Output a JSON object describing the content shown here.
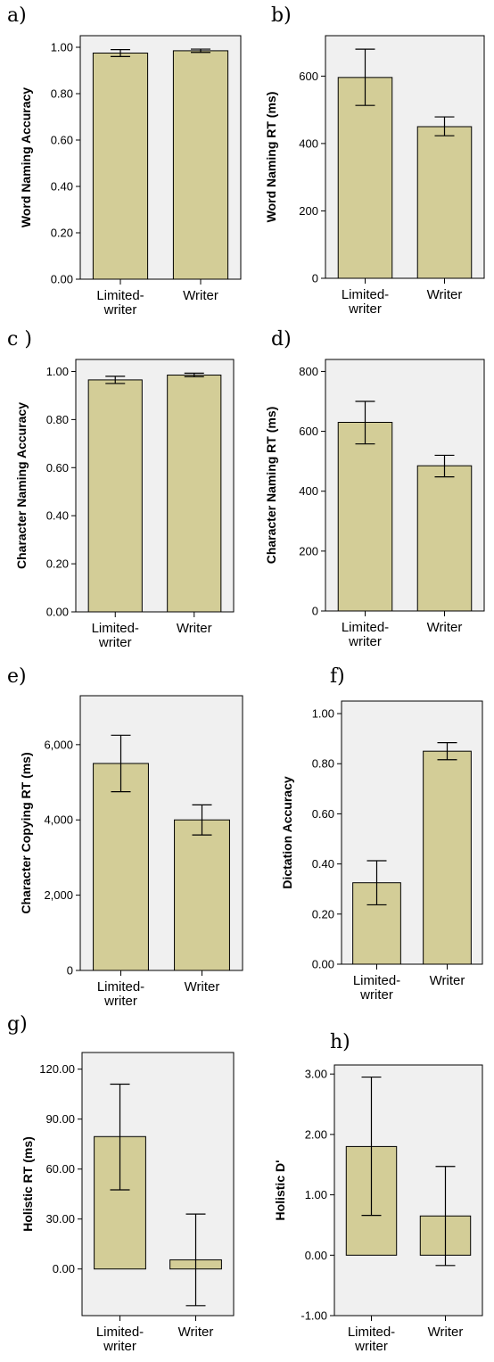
{
  "chart_data": [
    {
      "panel": "a)",
      "type": "bar",
      "categories": [
        [
          "Limited-",
          "writer"
        ],
        [
          "Writer"
        ]
      ],
      "values": [
        0.975,
        0.985
      ],
      "error_bars": [
        [
          0.96,
          0.99
        ],
        [
          0.978,
          0.992
        ]
      ],
      "ylabel": "Word Naming Accuracy",
      "ylim": [
        0,
        1.05
      ],
      "yticks": [
        0,
        0.2,
        0.4,
        0.6,
        0.8,
        1.0
      ],
      "ytick_labels": [
        "0.00",
        "0.20",
        "0.40",
        "0.60",
        "0.80",
        "1.00"
      ],
      "bar_color": "#d3cd97",
      "plot_bg": "#f0f0f0"
    },
    {
      "panel": "b)",
      "type": "bar",
      "categories": [
        [
          "Limited-",
          "writer"
        ],
        [
          "Writer"
        ]
      ],
      "values": [
        596,
        450
      ],
      "error_bars": [
        [
          513,
          680
        ],
        [
          423,
          479
        ]
      ],
      "ylabel": "Word Naming RT (ms)",
      "ylim": [
        0,
        720
      ],
      "yticks": [
        0,
        200,
        400,
        600
      ],
      "ytick_labels": [
        "0",
        "200",
        "400",
        "600"
      ],
      "bar_color": "#d3cd97",
      "plot_bg": "#f0f0f0"
    },
    {
      "panel": "c )",
      "type": "bar",
      "categories": [
        [
          "Limited-",
          "writer"
        ],
        [
          "Writer"
        ]
      ],
      "values": [
        0.965,
        0.985
      ],
      "error_bars": [
        [
          0.95,
          0.98
        ],
        [
          0.978,
          0.993
        ]
      ],
      "ylabel": "Character Naming Accuracy",
      "ylim": [
        0,
        1.05
      ],
      "yticks": [
        0,
        0.2,
        0.4,
        0.6,
        0.8,
        1.0
      ],
      "ytick_labels": [
        "0.00",
        "0.20",
        "0.40",
        "0.60",
        "0.80",
        "1.00"
      ],
      "bar_color": "#d3cd97",
      "plot_bg": "#f0f0f0"
    },
    {
      "panel": "d)",
      "type": "bar",
      "categories": [
        [
          "Limited-",
          "writer"
        ],
        [
          "Writer"
        ]
      ],
      "values": [
        630,
        485
      ],
      "error_bars": [
        [
          558,
          700
        ],
        [
          448,
          520
        ]
      ],
      "ylabel": "Character Naming RT (ms)",
      "ylim": [
        0,
        840
      ],
      "yticks": [
        0,
        200,
        400,
        600,
        800
      ],
      "ytick_labels": [
        "0",
        "200",
        "400",
        "600",
        "800"
      ],
      "bar_color": "#d3cd97",
      "plot_bg": "#f0f0f0"
    },
    {
      "panel": "e)",
      "type": "bar",
      "categories": [
        [
          "Limited-",
          "writer"
        ],
        [
          "Writer"
        ]
      ],
      "values": [
        5500,
        4000
      ],
      "error_bars": [
        [
          4750,
          6250
        ],
        [
          3600,
          4400
        ]
      ],
      "ylabel": "Character Copying RT (ms)",
      "ylim": [
        0,
        7300
      ],
      "yticks": [
        0,
        2000,
        4000,
        6000
      ],
      "ytick_labels": [
        "0",
        "2,000",
        "4,000",
        "6,000"
      ],
      "bar_color": "#d3cd97",
      "plot_bg": "#f0f0f0"
    },
    {
      "panel": "f)",
      "type": "bar",
      "categories": [
        [
          "Limited-",
          "writer"
        ],
        [
          "Writer"
        ]
      ],
      "values": [
        0.325,
        0.85
      ],
      "error_bars": [
        [
          0.237,
          0.413
        ],
        [
          0.816,
          0.884
        ]
      ],
      "ylabel": "Dictation Accuracy",
      "ylim": [
        0,
        1.05
      ],
      "yticks": [
        0,
        0.2,
        0.4,
        0.6,
        0.8,
        1.0
      ],
      "ytick_labels": [
        "0.00",
        "0.20",
        "0.40",
        "0.60",
        "0.80",
        "1.00"
      ],
      "bar_color": "#d3cd97",
      "plot_bg": "#f0f0f0"
    },
    {
      "panel": "g)",
      "type": "bar",
      "categories": [
        [
          "Limited-",
          "writer"
        ],
        [
          "Writer"
        ]
      ],
      "values": [
        79.5,
        5.5
      ],
      "error_bars": [
        [
          47.5,
          111
        ],
        [
          -22,
          33
        ]
      ],
      "ylabel": "Holistic RT (ms)",
      "ylim": [
        -28,
        130
      ],
      "yticks": [
        0,
        30,
        60,
        90,
        120
      ],
      "ytick_labels": [
        "0.00",
        "30.00",
        "60.00",
        "90.00",
        "120.00"
      ],
      "bar_color": "#d3cd97",
      "plot_bg": "#f0f0f0"
    },
    {
      "panel": "h)",
      "type": "bar",
      "categories": [
        [
          "Limited-",
          "writer"
        ],
        [
          "Writer"
        ]
      ],
      "values": [
        1.8,
        0.65
      ],
      "error_bars": [
        [
          0.66,
          2.95
        ],
        [
          -0.17,
          1.47
        ]
      ],
      "ylabel": "Holistic D'",
      "ylim": [
        -1.0,
        3.15
      ],
      "yticks": [
        -1,
        0,
        1,
        2,
        3
      ],
      "ytick_labels": [
        "-1.00",
        "0.00",
        "1.00",
        "2.00",
        "3.00"
      ],
      "bar_color": "#d3cd97",
      "plot_bg": "#f0f0f0"
    }
  ]
}
